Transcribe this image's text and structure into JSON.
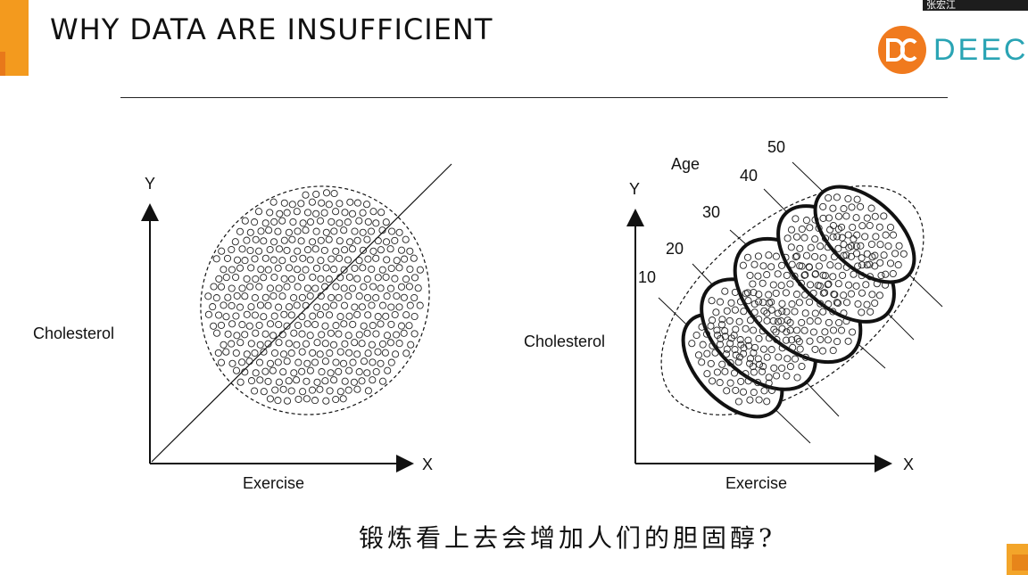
{
  "slide": {
    "title": "WHY DATA ARE INSUFFICIENT",
    "logo_text": "DEECA",
    "user_name": "张宏江",
    "caption": "锻炼看上去会增加人们的胆固醇?"
  },
  "left_diagram": {
    "y_axis_label": "Y",
    "x_axis_label": "X",
    "y_title": "Cholesterol",
    "x_title": "Exercise"
  },
  "right_diagram": {
    "y_axis_label": "Y",
    "x_axis_label": "X",
    "y_title": "Cholesterol",
    "x_title": "Exercise",
    "group_title": "Age",
    "age_groups": [
      "10",
      "20",
      "30",
      "40",
      "50"
    ]
  },
  "colors": {
    "accent_orange": "#f39a1e",
    "logo_orange": "#f07a1e",
    "logo_teal": "#2aa4b4"
  }
}
